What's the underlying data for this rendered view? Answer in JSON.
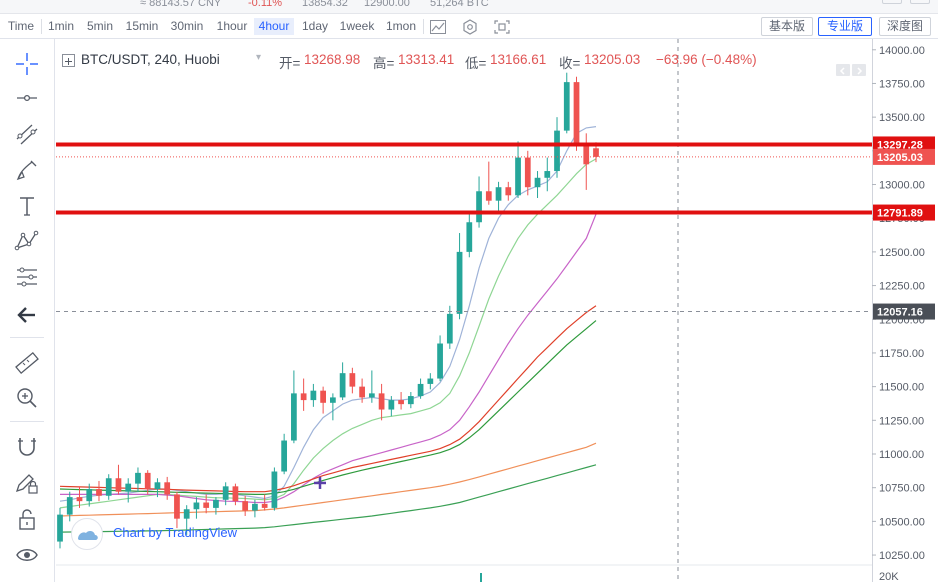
{
  "ticker_bar": {
    "cny_value": "≈ 88143.57 CNY",
    "change_pct": "-0.11%",
    "high_24h": "13854.32",
    "low_24h": "12900.00",
    "volume_24h": "51,264 BTC"
  },
  "toolbar": {
    "intervals": [
      "Time",
      "1min",
      "5min",
      "15min",
      "30min",
      "1hour",
      "4hour",
      "1day",
      "1week",
      "1mon"
    ],
    "active_interval": "4hour",
    "icons": [
      "candle-style-icon",
      "indicators-icon",
      "fullscreen-icon"
    ],
    "views": [
      "基本版",
      "专业版",
      "深度图"
    ],
    "active_view": "专业版"
  },
  "left_tools": [
    "crosshair-icon",
    "horizontal-line-icon",
    "trend-lines-icon",
    "brush-icon",
    "text-icon",
    "pattern-icon",
    "fib-icon",
    "back-arrow-icon",
    "ruler-icon",
    "zoom-in-icon",
    "magnet-icon",
    "lock-drawing-icon",
    "lock-icon",
    "eye-icon"
  ],
  "legend": {
    "symbol": "BTC/USDT, 240, Huobi",
    "open_label": "开=",
    "open": "13268.98",
    "high_label": "高=",
    "high": "13313.41",
    "low_label": "低=",
    "low": "13166.61",
    "close_label": "收=",
    "close": "13205.03",
    "change": "−63.96 (−0.48%)"
  },
  "attribution": "Chart by TradingView",
  "colors": {
    "up": "#26a69a",
    "down": "#ef5350",
    "accent": "#2962ff",
    "hline": "#e01010",
    "ma_blue": "#9fb3d8",
    "ma_green": "#8fd694",
    "ma_magenta": "#c864c8",
    "ma_red": "#e0402a",
    "ma_darkgreen": "#2e9a3c",
    "ma_orange": "#f0905a",
    "ma_teal": "#3aa055"
  },
  "chart_data": {
    "type": "candlestick",
    "symbol": "BTC/USDT",
    "interval": "240",
    "exchange": "Huobi",
    "ylim": [
      10050,
      14080
    ],
    "y_ticks": [
      10250,
      10500,
      10750,
      11000,
      11250,
      11500,
      11750,
      12000,
      12250,
      12500,
      12750,
      13000,
      13250,
      13500,
      13750,
      14000
    ],
    "y_tick_labels": [
      "10250.00",
      "10500.00",
      "10750.00",
      "11000.00",
      "11250.00",
      "11500.00",
      "11750.00",
      "12000.00",
      "12250.00",
      "12500.00",
      "12750.00",
      "13000.00",
      "13250.00",
      "13500.00",
      "13750.00",
      "14000.00"
    ],
    "volume_label": "20K",
    "candles": [
      [
        10350,
        10600,
        10300,
        10550
      ],
      [
        10550,
        10720,
        10500,
        10680
      ],
      [
        10680,
        10760,
        10600,
        10650
      ],
      [
        10650,
        10780,
        10610,
        10740
      ],
      [
        10740,
        10800,
        10650,
        10690
      ],
      [
        10690,
        10850,
        10660,
        10820
      ],
      [
        10820,
        10920,
        10700,
        10720
      ],
      [
        10720,
        10820,
        10640,
        10780
      ],
      [
        10780,
        10900,
        10720,
        10860
      ],
      [
        10860,
        10880,
        10700,
        10740
      ],
      [
        10740,
        10820,
        10680,
        10790
      ],
      [
        10790,
        10830,
        10660,
        10700
      ],
      [
        10700,
        10720,
        10450,
        10520
      ],
      [
        10520,
        10620,
        10400,
        10590
      ],
      [
        10590,
        10680,
        10520,
        10640
      ],
      [
        10640,
        10700,
        10560,
        10600
      ],
      [
        10600,
        10680,
        10550,
        10660
      ],
      [
        10660,
        10790,
        10620,
        10760
      ],
      [
        10760,
        10780,
        10620,
        10650
      ],
      [
        10650,
        10690,
        10540,
        10580
      ],
      [
        10580,
        10660,
        10530,
        10630
      ],
      [
        10630,
        10700,
        10580,
        10600
      ],
      [
        10600,
        10900,
        10580,
        10870
      ],
      [
        10870,
        11150,
        10850,
        11100
      ],
      [
        11100,
        11620,
        11080,
        11450
      ],
      [
        11450,
        11560,
        11320,
        11400
      ],
      [
        11400,
        11520,
        11350,
        11470
      ],
      [
        11470,
        11500,
        11300,
        11380
      ],
      [
        11380,
        11450,
        11250,
        11420
      ],
      [
        11420,
        11680,
        11400,
        11600
      ],
      [
        11600,
        11640,
        11450,
        11500
      ],
      [
        11500,
        11560,
        11380,
        11420
      ],
      [
        11420,
        11620,
        11380,
        11450
      ],
      [
        11450,
        11520,
        11250,
        11330
      ],
      [
        11330,
        11430,
        11280,
        11400
      ],
      [
        11400,
        11460,
        11330,
        11370
      ],
      [
        11370,
        11460,
        11340,
        11430
      ],
      [
        11430,
        11560,
        11410,
        11520
      ],
      [
        11520,
        11600,
        11480,
        11560
      ],
      [
        11560,
        11880,
        11540,
        11820
      ],
      [
        11820,
        12100,
        11780,
        12040
      ],
      [
        12040,
        12640,
        12000,
        12500
      ],
      [
        12500,
        12780,
        12460,
        12720
      ],
      [
        12720,
        13060,
        12680,
        12950
      ],
      [
        12950,
        13170,
        12850,
        12880
      ],
      [
        12880,
        13020,
        12800,
        12980
      ],
      [
        12980,
        13020,
        12880,
        12920
      ],
      [
        12920,
        13320,
        12900,
        13200
      ],
      [
        13200,
        13250,
        12920,
        12980
      ],
      [
        12980,
        13100,
        12900,
        13050
      ],
      [
        13050,
        13200,
        12950,
        13100
      ],
      [
        13100,
        13500,
        13050,
        13400
      ],
      [
        13400,
        13830,
        13380,
        13760
      ],
      [
        13760,
        13800,
        13250,
        13300
      ],
      [
        13300,
        13380,
        12960,
        13150
      ],
      [
        13268.98,
        13313.41,
        13166.61,
        13205.03
      ]
    ],
    "moving_averages": [
      {
        "color": "#9fb3d8",
        "y": [
          10650,
          10660,
          10675,
          10685,
          10695,
          10700,
          10705,
          10710,
          10720,
          10730,
          10740,
          10740,
          10730,
          10720,
          10710,
          10700,
          10700,
          10705,
          10700,
          10690,
          10680,
          10670,
          10690,
          10760,
          10900,
          11050,
          11180,
          11270,
          11320,
          11370,
          11400,
          11410,
          11420,
          11410,
          11400,
          11400,
          11410,
          11430,
          11460,
          11530,
          11650,
          11850,
          12100,
          12380,
          12600,
          12750,
          12850,
          12920,
          12960,
          12990,
          13020,
          13100,
          13250,
          13380,
          13420,
          13430
        ]
      },
      {
        "color": "#8fd694",
        "y": [
          10600,
          10610,
          10620,
          10630,
          10640,
          10650,
          10660,
          10670,
          10680,
          10690,
          10700,
          10700,
          10695,
          10690,
          10685,
          10680,
          10675,
          10675,
          10672,
          10670,
          10665,
          10660,
          10670,
          10700,
          10780,
          10880,
          10970,
          11040,
          11100,
          11150,
          11190,
          11220,
          11250,
          11270,
          11280,
          11290,
          11300,
          11320,
          11340,
          11380,
          11450,
          11580,
          11750,
          11950,
          12150,
          12320,
          12470,
          12600,
          12700,
          12780,
          12850,
          12920,
          13000,
          13080,
          13150,
          13190
        ]
      },
      {
        "color": "#c864c8",
        "y": [
          10700,
          10700,
          10700,
          10700,
          10700,
          10700,
          10700,
          10700,
          10700,
          10700,
          10700,
          10695,
          10690,
          10680,
          10670,
          10660,
          10655,
          10650,
          10648,
          10645,
          10640,
          10640,
          10650,
          10680,
          10720,
          10770,
          10820,
          10860,
          10890,
          10920,
          10950,
          10970,
          10990,
          11010,
          11030,
          11050,
          11070,
          11090,
          11110,
          11140,
          11180,
          11250,
          11350,
          11460,
          11580,
          11700,
          11820,
          11930,
          12030,
          12120,
          12210,
          12300,
          12400,
          12500,
          12600,
          12780
        ]
      },
      {
        "color": "#e0402a",
        "y": [
          10760,
          10758,
          10756,
          10754,
          10752,
          10750,
          10748,
          10746,
          10744,
          10742,
          10740,
          10738,
          10735,
          10732,
          10730,
          10728,
          10726,
          10724,
          10722,
          10720,
          10720,
          10720,
          10730,
          10745,
          10765,
          10790,
          10815,
          10840,
          10860,
          10880,
          10900,
          10915,
          10930,
          10945,
          10960,
          10975,
          10990,
          11005,
          11020,
          11040,
          11070,
          11110,
          11170,
          11240,
          11320,
          11400,
          11480,
          11560,
          11640,
          11720,
          11790,
          11860,
          11930,
          11990,
          12050,
          12100
        ]
      },
      {
        "color": "#2e9a3c",
        "y": [
          10740,
          10738,
          10736,
          10734,
          10732,
          10730,
          10728,
          10726,
          10724,
          10722,
          10720,
          10718,
          10716,
          10714,
          10712,
          10710,
          10708,
          10706,
          10704,
          10702,
          10700,
          10700,
          10708,
          10720,
          10738,
          10760,
          10782,
          10804,
          10824,
          10844,
          10862,
          10880,
          10896,
          10912,
          10928,
          10944,
          10960,
          10976,
          10992,
          11010,
          11035,
          11070,
          11120,
          11180,
          11250,
          11320,
          11390,
          11460,
          11530,
          11600,
          11670,
          11740,
          11810,
          11870,
          11930,
          11990
        ]
      },
      {
        "color": "#f0905a",
        "y": [
          10540,
          10542,
          10544,
          10546,
          10548,
          10550,
          10552,
          10554,
          10556,
          10558,
          10560,
          10562,
          10564,
          10566,
          10568,
          10570,
          10572,
          10574,
          10576,
          10578,
          10580,
          10585,
          10592,
          10600,
          10610,
          10620,
          10630,
          10640,
          10650,
          10660,
          10670,
          10680,
          10690,
          10700,
          10710,
          10720,
          10730,
          10740,
          10750,
          10762,
          10776,
          10792,
          10810,
          10830,
          10850,
          10870,
          10890,
          10910,
          10930,
          10950,
          10970,
          10990,
          11010,
          11030,
          11050,
          11080
        ]
      },
      {
        "color": "#3aa055",
        "y": [
          10420,
          10421,
          10422,
          10423,
          10424,
          10425,
          10426,
          10427,
          10428,
          10429,
          10430,
          10432,
          10434,
          10436,
          10438,
          10440,
          10442,
          10444,
          10446,
          10448,
          10450,
          10454,
          10460,
          10468,
          10476,
          10484,
          10492,
          10500,
          10508,
          10516,
          10524,
          10532,
          10540,
          10550,
          10560,
          10570,
          10580,
          10590,
          10600,
          10612,
          10625,
          10640,
          10660,
          10680,
          10700,
          10720,
          10740,
          10760,
          10780,
          10800,
          10820,
          10840,
          10860,
          10880,
          10900,
          10920
        ]
      }
    ],
    "horizontal_lines": [
      {
        "value": 13297.28,
        "label": "13297.28",
        "style": "thick-red"
      },
      {
        "value": 12791.89,
        "label": "12791.89",
        "style": "thick-red"
      },
      {
        "value": 13205.03,
        "label": "13205.03",
        "style": "last-price"
      },
      {
        "value": 12057.16,
        "label": "12057.16",
        "style": "crosshair"
      }
    ]
  }
}
